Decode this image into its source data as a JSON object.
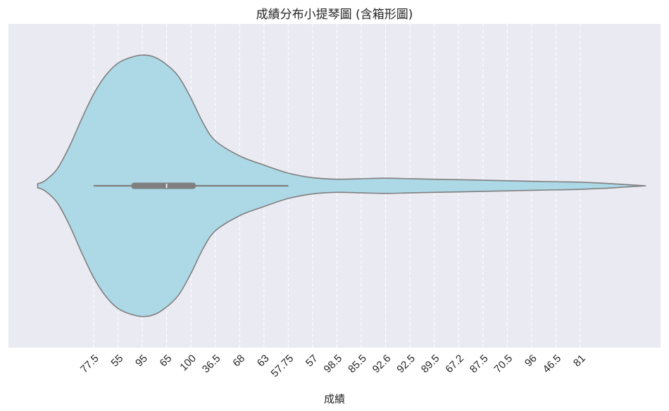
{
  "chart_data": {
    "type": "violin",
    "title": "成績分布小提琴圖 (含箱形圖)",
    "xlabel": "成績",
    "ylabel": "",
    "tick_labels": [
      "77.5",
      "55",
      "95",
      "65",
      "100",
      "36.5",
      "68",
      "63",
      "57.75",
      "57",
      "98.5",
      "85.5",
      "92.6",
      "92.5",
      "89.5",
      "67.2",
      "87.5",
      "70.5",
      "96",
      "46.5",
      "81"
    ],
    "x_range": [
      -3.5,
      23.3
    ],
    "density_profile": {
      "x": [
        -2.3,
        -2.0,
        -1.5,
        -1.0,
        -0.5,
        0.0,
        0.5,
        1.0,
        1.5,
        2.0,
        2.5,
        3.0,
        3.5,
        4.0,
        4.5,
        5.0,
        6.0,
        7.0,
        8.0,
        9.0,
        10.0,
        11.0,
        12.0,
        13.0,
        14.0,
        15.0,
        16.0,
        17.0,
        18.0,
        19.0,
        20.0,
        21.0,
        22.0,
        22.7
      ],
      "half_width": [
        0.04,
        0.1,
        0.33,
        0.77,
        1.31,
        1.81,
        2.18,
        2.42,
        2.53,
        2.58,
        2.54,
        2.39,
        2.15,
        1.73,
        1.24,
        0.89,
        0.59,
        0.41,
        0.25,
        0.16,
        0.13,
        0.14,
        0.15,
        0.14,
        0.13,
        0.12,
        0.11,
        0.1,
        0.09,
        0.08,
        0.07,
        0.05,
        0.02,
        0.0
      ]
    },
    "box": {
      "whisker_low": 0.0,
      "q1": 1.55,
      "median": 3.0,
      "q3": 4.2,
      "whisker_high": 8.0
    },
    "colors": {
      "fill": "#add8e6",
      "edge": "#7f7f7f",
      "box": "#7f7f7f",
      "median": "#ffffff",
      "background": "#eaeaf2",
      "grid": "#ffffff"
    },
    "grid": "vertical-dashed",
    "legend": "none"
  }
}
